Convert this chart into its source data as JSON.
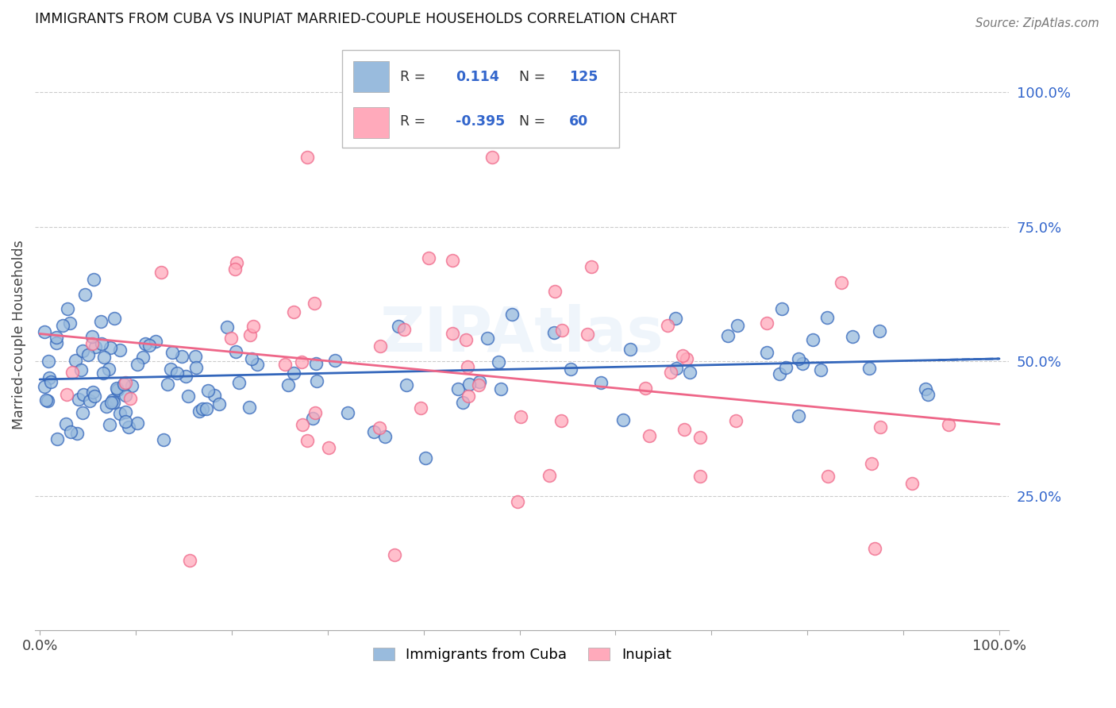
{
  "title": "IMMIGRANTS FROM CUBA VS INUPIAT MARRIED-COUPLE HOUSEHOLDS CORRELATION CHART",
  "source": "Source: ZipAtlas.com",
  "ylabel": "Married-couple Households",
  "y_ticks": [
    "25.0%",
    "50.0%",
    "75.0%",
    "100.0%"
  ],
  "y_tick_vals": [
    0.25,
    0.5,
    0.75,
    1.0
  ],
  "legend1_label": "Immigrants from Cuba",
  "legend2_label": "Inupiat",
  "R1": "0.114",
  "N1": "125",
  "R2": "-0.395",
  "N2": "60",
  "color_blue": "#99BBDD",
  "color_pink": "#FFAABB",
  "line_blue": "#3366BB",
  "line_pink": "#EE6688",
  "watermark": "ZIPAtlas"
}
